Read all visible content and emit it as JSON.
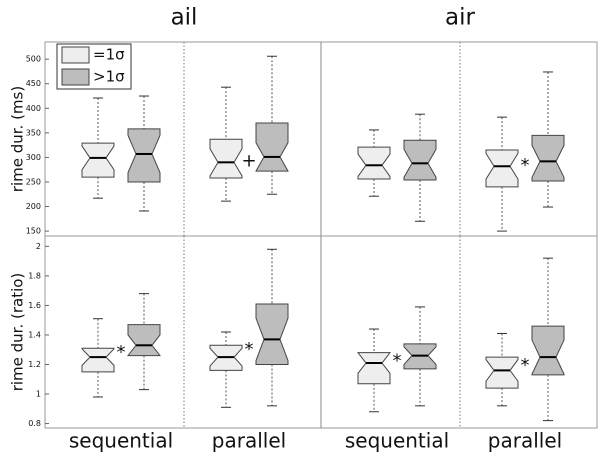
{
  "chart_data": {
    "type": "box",
    "titles": [
      "ail",
      "air"
    ],
    "groups": [
      "sequential",
      "parallel"
    ],
    "legend": "upper left",
    "series": [
      {
        "name": "=1σ",
        "color": "#eeeeee"
      },
      {
        "name": ">1σ",
        "color": "#bdbdbd"
      }
    ],
    "rows": [
      {
        "ylabel": "rime dur. (ms)",
        "ylim": [
          140,
          535
        ],
        "yticks": [
          150,
          200,
          250,
          300,
          350,
          400,
          450,
          500
        ],
        "cells": [
          {
            "groups": [
              {
                "boxes": [
                  {
                    "min": 217,
                    "q1": 260,
                    "median": 299,
                    "q3": 329,
                    "max": 421
                  },
                  {
                    "min": 191,
                    "q1": 250,
                    "median": 307,
                    "q3": 358,
                    "max": 425
                  }
                ]
              },
              {
                "sig": "+",
                "boxes": [
                  {
                    "min": 211,
                    "q1": 258,
                    "median": 290,
                    "q3": 337,
                    "max": 443
                  },
                  {
                    "min": 225,
                    "q1": 272,
                    "median": 301,
                    "q3": 370,
                    "max": 506
                  }
                ]
              }
            ]
          },
          {
            "groups": [
              {
                "boxes": [
                  {
                    "min": 221,
                    "q1": 256,
                    "median": 284,
                    "q3": 321,
                    "max": 356
                  },
                  {
                    "min": 170,
                    "q1": 254,
                    "median": 288,
                    "q3": 335,
                    "max": 388
                  }
                ]
              },
              {
                "sig": "*",
                "boxes": [
                  {
                    "min": 150,
                    "q1": 240,
                    "median": 282,
                    "q3": 315,
                    "max": 382
                  },
                  {
                    "min": 199,
                    "q1": 252,
                    "median": 292,
                    "q3": 345,
                    "max": 474
                  }
                ]
              }
            ]
          }
        ]
      },
      {
        "ylabel": "rime dur. (ratio)",
        "ylim": [
          0.77,
          2.07
        ],
        "yticks": [
          0.8,
          1,
          1.2,
          1.4,
          1.6,
          1.8,
          2
        ],
        "cells": [
          {
            "groups": [
              {
                "sig": "*",
                "boxes": [
                  {
                    "min": 0.98,
                    "q1": 1.15,
                    "median": 1.25,
                    "q3": 1.31,
                    "max": 1.51
                  },
                  {
                    "min": 1.03,
                    "q1": 1.26,
                    "median": 1.33,
                    "q3": 1.47,
                    "max": 1.68
                  }
                ]
              },
              {
                "sig": "*",
                "boxes": [
                  {
                    "min": 0.91,
                    "q1": 1.16,
                    "median": 1.25,
                    "q3": 1.33,
                    "max": 1.42
                  },
                  {
                    "min": 0.92,
                    "q1": 1.2,
                    "median": 1.37,
                    "q3": 1.61,
                    "max": 1.98
                  }
                ]
              }
            ]
          },
          {
            "groups": [
              {
                "sig": "*",
                "boxes": [
                  {
                    "min": 0.88,
                    "q1": 1.07,
                    "median": 1.21,
                    "q3": 1.28,
                    "max": 1.44
                  },
                  {
                    "min": 0.92,
                    "q1": 1.17,
                    "median": 1.26,
                    "q3": 1.34,
                    "max": 1.59
                  }
                ]
              },
              {
                "sig": "*",
                "boxes": [
                  {
                    "min": 0.92,
                    "q1": 1.04,
                    "median": 1.16,
                    "q3": 1.25,
                    "max": 1.41
                  },
                  {
                    "min": 0.82,
                    "q1": 1.13,
                    "median": 1.25,
                    "q3": 1.46,
                    "max": 1.92
                  }
                ]
              }
            ]
          }
        ]
      }
    ]
  }
}
